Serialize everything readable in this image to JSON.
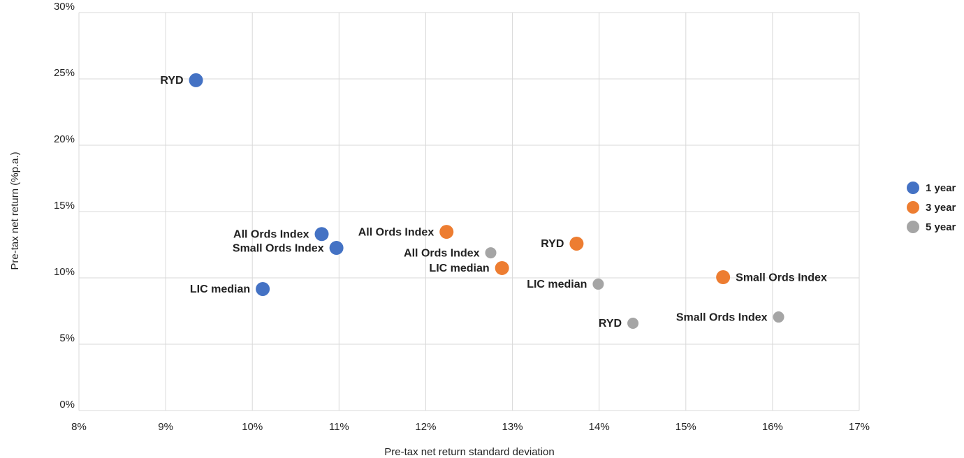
{
  "chart_data": {
    "type": "scatter",
    "x_label": "Pre-tax net return standard deviation",
    "y_label": "Pre-tax net return (%p.a.)",
    "xlim": [
      8,
      17
    ],
    "ylim": [
      0,
      30
    ],
    "xticks": [
      {
        "value": 8,
        "label": "8%"
      },
      {
        "value": 9,
        "label": "9%"
      },
      {
        "value": 10,
        "label": "10%"
      },
      {
        "value": 11,
        "label": "11%"
      },
      {
        "value": 12,
        "label": "12%"
      },
      {
        "value": 13,
        "label": "13%"
      },
      {
        "value": 14,
        "label": "14%"
      },
      {
        "value": 15,
        "label": "15%"
      },
      {
        "value": 16,
        "label": "16%"
      },
      {
        "value": 17,
        "label": "17%"
      }
    ],
    "yticks": [
      {
        "value": 0,
        "label": "0%"
      },
      {
        "value": 5,
        "label": "5%"
      },
      {
        "value": 10,
        "label": "10%"
      },
      {
        "value": 15,
        "label": "15%"
      },
      {
        "value": 20,
        "label": "20%"
      },
      {
        "value": 25,
        "label": "25%"
      },
      {
        "value": 30,
        "label": "30%"
      }
    ],
    "grid": true,
    "legend": "right",
    "series": [
      {
        "name": "1 year",
        "color": "#4472c4",
        "labels": [
          "RYD",
          "All Ords Index",
          "Small Ords Index",
          "LIC median"
        ],
        "x": [
          9.35,
          10.8,
          10.97,
          10.12
        ],
        "values": [
          24.9,
          13.3,
          12.26,
          9.16
        ]
      },
      {
        "name": "3 year",
        "color": "#ed7d31",
        "labels": [
          "All Ords Index",
          "LIC median",
          "RYD",
          "Small Ords Index"
        ],
        "x": [
          12.24,
          12.88,
          13.74,
          15.43
        ],
        "values": [
          13.47,
          10.74,
          12.58,
          10.05
        ]
      },
      {
        "name": "5 year",
        "color": "#a5a5a5",
        "labels": [
          "All Ords Index",
          "LIC median",
          "RYD",
          "Small Ords Index"
        ],
        "x": [
          12.75,
          13.99,
          14.39,
          16.07
        ],
        "values": [
          11.89,
          9.53,
          6.58,
          7.05
        ]
      }
    ]
  }
}
